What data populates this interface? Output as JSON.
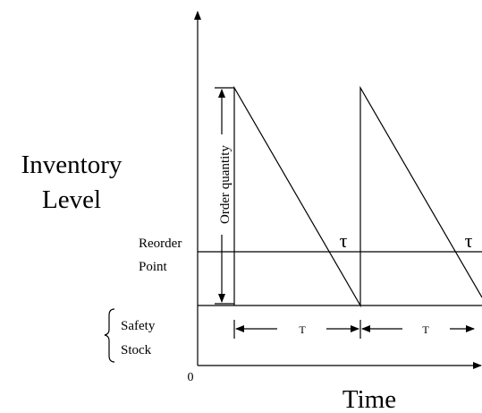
{
  "y_axis_label": {
    "line1": "Inventory",
    "line2": "Level"
  },
  "x_axis_label": "Time",
  "origin_label": "0",
  "reorder_point": {
    "line1": "Reorder",
    "line2": "Point"
  },
  "safety_stock": {
    "line1": "Safety",
    "line2": "Stock"
  },
  "order_quantity": "Order quantity",
  "lead_time_labels": [
    "τ",
    "τ"
  ],
  "cycle_labels": [
    "T",
    "T"
  ]
}
